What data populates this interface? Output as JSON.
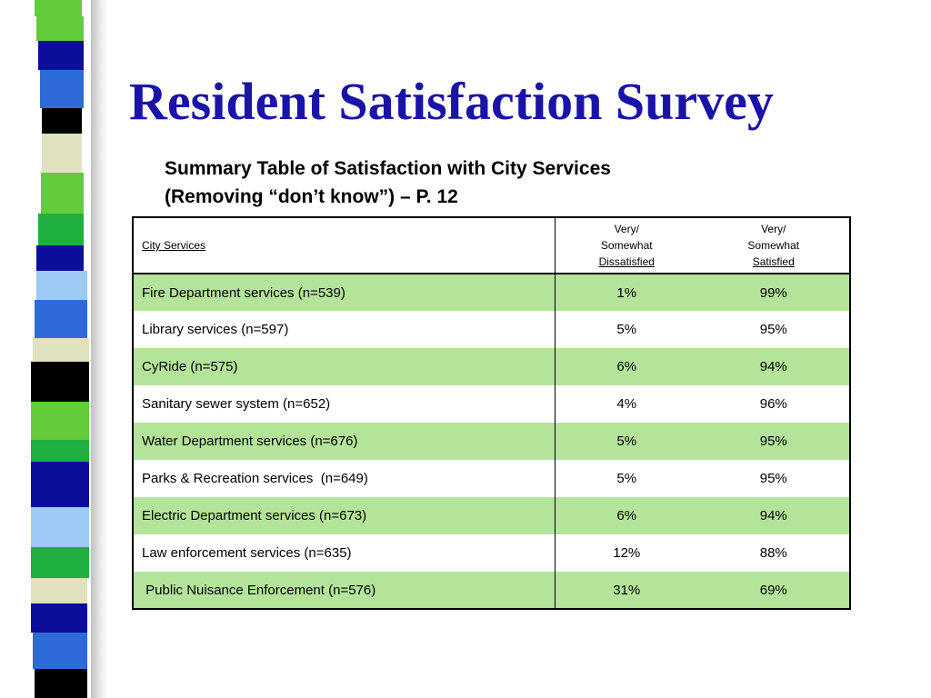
{
  "slide": {
    "title": "Resident Satisfaction Survey",
    "subtitle_line1": "Summary Table of Satisfaction with City Services",
    "subtitle_line2": "(Removing “don’t know”) – P. 12"
  },
  "table": {
    "header": {
      "service": "City Services",
      "dissatisfied": [
        "Very/",
        "Somewhat",
        "Dissatisfied"
      ],
      "satisfied": [
        "Very/",
        "Somewhat",
        "Satisfied"
      ]
    },
    "rows": [
      {
        "service": "Fire Department services (n=539)",
        "dissatisfied": "1%",
        "satisfied": "99%"
      },
      {
        "service": "Library services (n=597)",
        "dissatisfied": "5%",
        "satisfied": "95%"
      },
      {
        "service": "CyRide (n=575)",
        "dissatisfied": "6%",
        "satisfied": "94%"
      },
      {
        "service": "Sanitary sewer system (n=652)",
        "dissatisfied": "4%",
        "satisfied": "96%"
      },
      {
        "service": "Water Department services (n=676)",
        "dissatisfied": "5%",
        "satisfied": "95%"
      },
      {
        "service": "Parks & Recreation services  (n=649)",
        "dissatisfied": "5%",
        "satisfied": "95%"
      },
      {
        "service": "Electric Department services (n=673)",
        "dissatisfied": "6%",
        "satisfied": "94%"
      },
      {
        "service": "Law enforcement services (n=635)",
        "dissatisfied": "12%",
        "satisfied": "88%"
      },
      {
        "service": " Public Nuisance Enforcement (n=576)",
        "dissatisfied": "31%",
        "satisfied": "69%"
      }
    ]
  },
  "colors": {
    "title": "#1a13a8",
    "row_shade": "#b3e49a",
    "stripe": [
      "#62cc3a",
      "#0d0d9c",
      "#2f6bd8",
      "#000000",
      "#e0e2c0",
      "#9ecbf5",
      "#20b040"
    ]
  }
}
